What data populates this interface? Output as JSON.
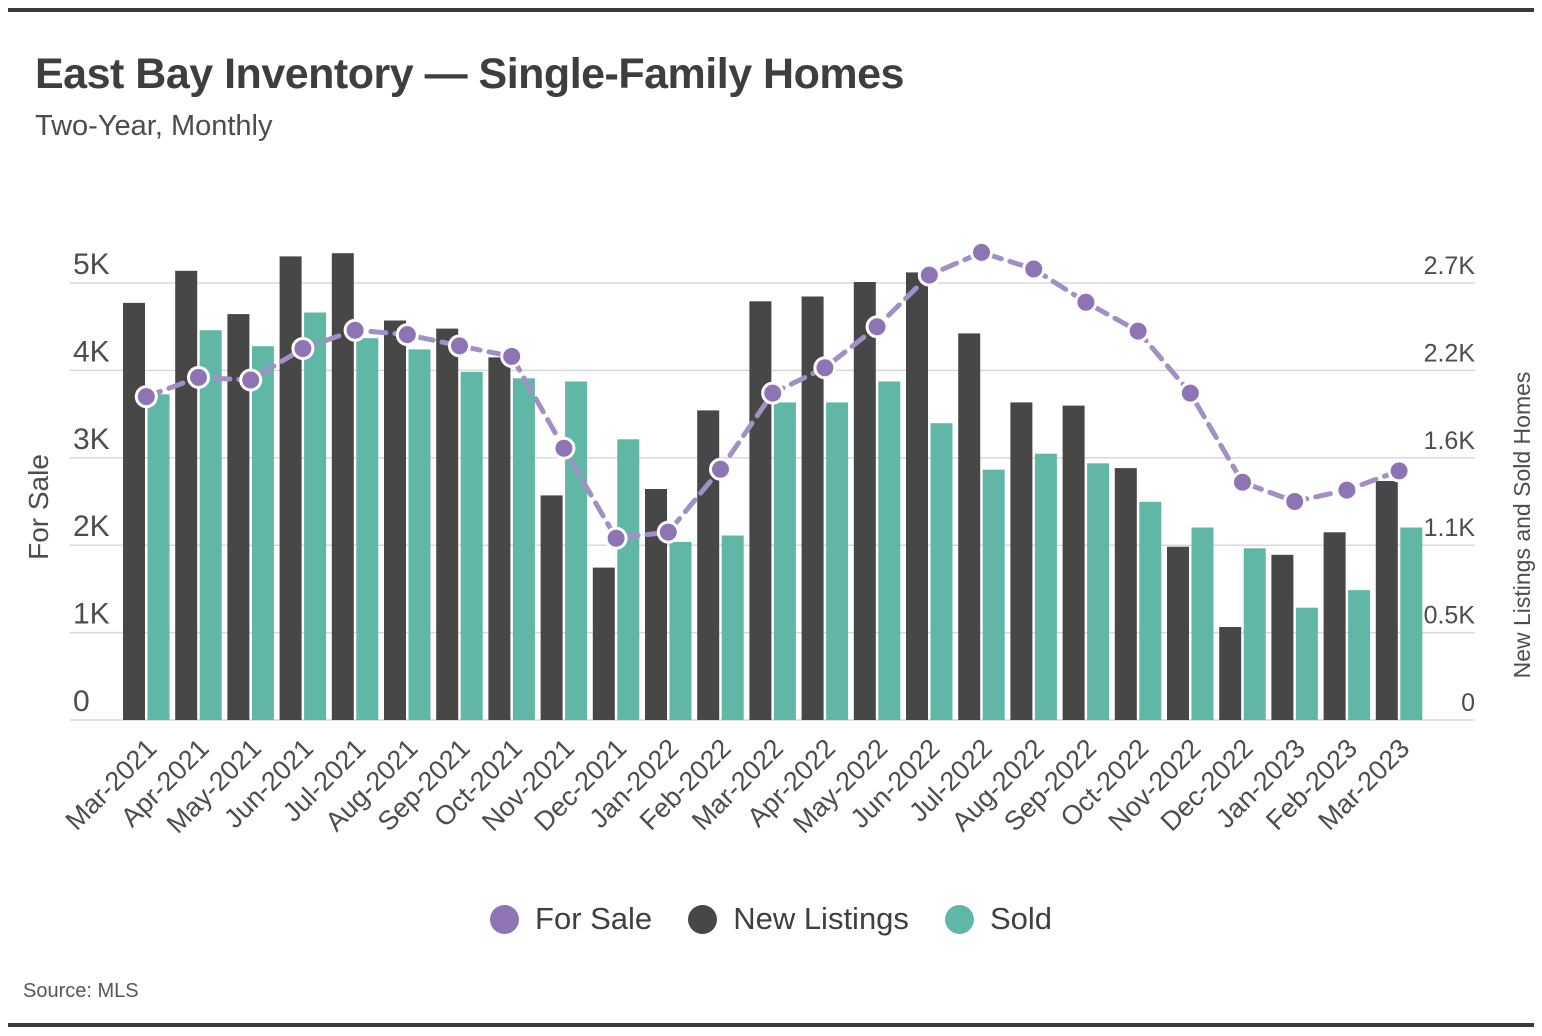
{
  "page": {
    "title": "East Bay Inventory — Single-Family Homes",
    "subtitle": "Two-Year, Monthly",
    "source": "Source: MLS"
  },
  "legend": [
    {
      "label": "For Sale",
      "color": "#8e74b4",
      "swatch": "circle"
    },
    {
      "label": "New Listings",
      "color": "#474747",
      "swatch": "circle"
    },
    {
      "label": "Sold",
      "color": "#61b7a6",
      "swatch": "circle"
    }
  ],
  "colors": {
    "for_sale_dot": "#8e74b4",
    "for_sale_line": "#a18fc5",
    "new_listings_bar": "#474747",
    "sold_bar": "#61b7a6",
    "gridline": "#d9d9d9",
    "axis_text": "#4d4d4d"
  },
  "chart_data": {
    "type": "bar",
    "subtype": "grouped-bars-with-line",
    "title": "East Bay Inventory — Single-Family Homes",
    "subtitle": "Two-Year, Monthly",
    "grid": true,
    "legend_position": "bottom",
    "categories": [
      "Mar-2021",
      "Apr-2021",
      "May-2021",
      "Jun-2021",
      "Jul-2021",
      "Aug-2021",
      "Sep-2021",
      "Oct-2021",
      "Nov-2021",
      "Dec-2021",
      "Jan-2022",
      "Feb-2022",
      "Mar-2022",
      "Apr-2022",
      "May-2022",
      "Jun-2022",
      "Jul-2022",
      "Aug-2022",
      "Sep-2022",
      "Oct-2022",
      "Nov-2022",
      "Dec-2022",
      "Jan-2023",
      "Feb-2023",
      "Mar-2023"
    ],
    "series": [
      {
        "name": "For Sale",
        "render": "line",
        "axis": "left",
        "values": [
          3700,
          3920,
          3890,
          4250,
          4460,
          4410,
          4280,
          4160,
          3110,
          2080,
          2150,
          2870,
          3740,
          4030,
          4500,
          5090,
          5350,
          5160,
          4780,
          4450,
          3740,
          2720,
          2500,
          2630,
          2850
        ]
      },
      {
        "name": "New Listings",
        "render": "bar",
        "axis": "right",
        "values": [
          2600,
          2800,
          2530,
          2890,
          2910,
          2490,
          2440,
          2260,
          1400,
          950,
          1440,
          1930,
          2610,
          2640,
          2730,
          2790,
          2410,
          1980,
          1960,
          1570,
          1080,
          580,
          1030,
          1170,
          1490
        ]
      },
      {
        "name": "Sold",
        "render": "bar",
        "axis": "right",
        "values": [
          2030,
          2430,
          2330,
          2540,
          2380,
          2310,
          2170,
          2130,
          2110,
          1750,
          1110,
          1150,
          1980,
          1980,
          2110,
          1850,
          1560,
          1660,
          1600,
          1360,
          1200,
          1070,
          700,
          810,
          1200
        ]
      }
    ],
    "left_axis": {
      "label": "For Sale",
      "ticks": [
        "0",
        "1K",
        "2K",
        "3K",
        "4K",
        "5K"
      ],
      "tick_values": [
        0,
        1000,
        2000,
        3000,
        4000,
        5000
      ],
      "grid_max": 5000
    },
    "right_axis": {
      "label": "New Listings and Sold Homes",
      "ticks": [
        "0",
        "0.5K",
        "1.1K",
        "1.6K",
        "2.2K",
        "2.7K"
      ],
      "tick_values": [
        0,
        545,
        1090,
        1634,
        2179,
        2724
      ],
      "grid_max": 2724
    }
  }
}
